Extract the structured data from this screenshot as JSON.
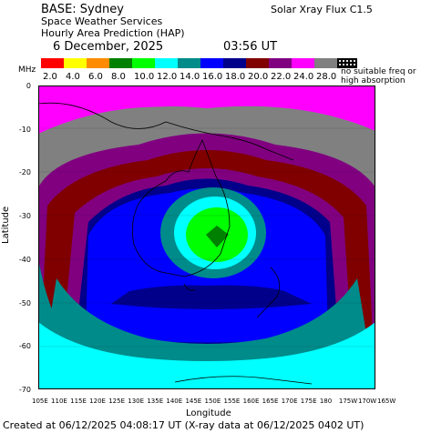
{
  "header": {
    "base": "BASE: Sydney",
    "service": "Space Weather Services",
    "product": "Hourly Area Prediction (HAP)",
    "date": "6 December, 2025",
    "time": "03:56 UT",
    "flux": "Solar Xray Flux C1.5"
  },
  "legend": {
    "unit": "MHz",
    "colors": [
      "#ff0000",
      "#ffff00",
      "#ff8c00",
      "#008000",
      "#00ff00",
      "#00ffff",
      "#008b8b",
      "#0000ff",
      "#00008b",
      "#800000",
      "#800080",
      "#ff00ff",
      "#808080"
    ],
    "labels": [
      "2.0",
      "4.0",
      "6.0",
      "8.0",
      "10.0",
      "12.0",
      "14.0",
      "16.0",
      "18.0",
      "20.0",
      "22.0",
      "24.0",
      "28.0"
    ],
    "no_data_line1": "no suitable freq or",
    "no_data_line2": "high absorption"
  },
  "axes": {
    "ylabel": "Latitude",
    "xlabel": "Longitude",
    "yticks": [
      "0",
      "-10",
      "-20",
      "-30",
      "-40",
      "-50",
      "-60",
      "-70"
    ],
    "xticks": [
      "105E",
      "110E",
      "115E",
      "120E",
      "125E",
      "130E",
      "135E",
      "140E",
      "145E",
      "150E",
      "155E",
      "160E",
      "165E",
      "170E",
      "175E",
      "180",
      "175W",
      "170W",
      "165W"
    ]
  },
  "footer": "Created at 06/12/2025 04:08:17 UT (X-ray data at 06/12/2025 0402 UT)"
}
